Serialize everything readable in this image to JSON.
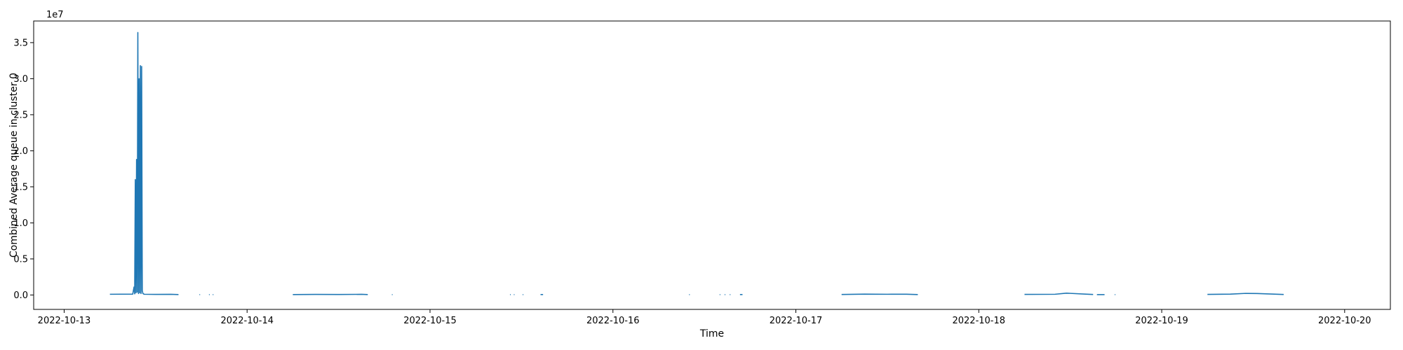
{
  "chart_data": {
    "type": "line",
    "title": "",
    "xlabel": "Time",
    "ylabel": "Combined Average queue in cluster 0",
    "y_offset_label": "1e7",
    "y_scale_factor": 10000000,
    "x_type": "date",
    "xlim": [
      "2022-10-12 20:00",
      "2022-10-20 06:00"
    ],
    "ylim": [
      -2000000,
      38000000
    ],
    "x_ticks": [
      "2022-10-13",
      "2022-10-14",
      "2022-10-15",
      "2022-10-16",
      "2022-10-17",
      "2022-10-18",
      "2022-10-19",
      "2022-10-20"
    ],
    "x_tick_labels": [
      "2022-10-13",
      "2022-10-14",
      "2022-10-15",
      "2022-10-16",
      "2022-10-17",
      "2022-10-18",
      "2022-10-19",
      "2022-10-20"
    ],
    "y_ticks": [
      0,
      5000000,
      10000000,
      15000000,
      20000000,
      25000000,
      30000000,
      35000000
    ],
    "y_tick_labels": [
      "0.0",
      "0.5",
      "1.0",
      "1.5",
      "2.0",
      "2.5",
      "3.0",
      "3.5"
    ],
    "grid": false,
    "legend": "none",
    "series_color": "#1f77b4",
    "series": [
      {
        "segments": [
          {
            "x": [
              "2022-10-13 06:00",
              "2022-10-13 09:00",
              "2022-10-13 09:10",
              "2022-10-13 09:15",
              "2022-10-13 09:20",
              "2022-10-13 09:25",
              "2022-10-13 09:30",
              "2022-10-13 09:35",
              "2022-10-13 09:40",
              "2022-10-13 09:45",
              "2022-10-13 09:50",
              "2022-10-13 09:55",
              "2022-10-13 10:00",
              "2022-10-13 10:05",
              "2022-10-13 10:10",
              "2022-10-13 10:15",
              "2022-10-13 10:20",
              "2022-10-13 10:30",
              "2022-10-13 12:00",
              "2022-10-13 14:00",
              "2022-10-13 15:00"
            ],
            "y": [
              100000,
              120000,
              1100000,
              150000,
              16000000,
              300000,
              18800000,
              400000,
              36400000,
              200000,
              30000000,
              300000,
              31800000,
              200000,
              31700000,
              600000,
              200000,
              100000,
              80000,
              90000,
              60000
            ]
          },
          {
            "x": [
              "2022-10-13 17:45",
              "2022-10-13 17:50"
            ],
            "y": [
              50000,
              50000
            ]
          },
          {
            "x": [
              "2022-10-13 19:00",
              "2022-10-13 19:05"
            ],
            "y": [
              50000,
              50000
            ]
          },
          {
            "x": [
              "2022-10-13 19:30",
              "2022-10-13 19:35"
            ],
            "y": [
              50000,
              50000
            ]
          },
          {
            "x": [
              "2022-10-14 06:00",
              "2022-10-14 09:00",
              "2022-10-14 12:00",
              "2022-10-14 15:00",
              "2022-10-14 15:50"
            ],
            "y": [
              60000,
              80000,
              70000,
              90000,
              60000
            ]
          },
          {
            "x": [
              "2022-10-14 19:00",
              "2022-10-14 19:05"
            ],
            "y": [
              50000,
              50000
            ]
          },
          {
            "x": [
              "2022-10-15 10:30",
              "2022-10-15 10:35"
            ],
            "y": [
              50000,
              50000
            ]
          },
          {
            "x": [
              "2022-10-15 11:00",
              "2022-10-15 11:05"
            ],
            "y": [
              50000,
              50000
            ]
          },
          {
            "x": [
              "2022-10-15 12:10",
              "2022-10-15 12:15"
            ],
            "y": [
              50000,
              50000
            ]
          },
          {
            "x": [
              "2022-10-15 14:30",
              "2022-10-15 14:50"
            ],
            "y": [
              60000,
              60000
            ]
          },
          {
            "x": [
              "2022-10-16 10:00",
              "2022-10-16 10:05"
            ],
            "y": [
              50000,
              50000
            ]
          },
          {
            "x": [
              "2022-10-16 14:00",
              "2022-10-16 14:05"
            ],
            "y": [
              50000,
              50000
            ]
          },
          {
            "x": [
              "2022-10-16 14:40",
              "2022-10-16 14:45"
            ],
            "y": [
              50000,
              50000
            ]
          },
          {
            "x": [
              "2022-10-16 15:20",
              "2022-10-16 15:25"
            ],
            "y": [
              50000,
              50000
            ]
          },
          {
            "x": [
              "2022-10-16 16:40",
              "2022-10-16 17:00"
            ],
            "y": [
              60000,
              60000
            ]
          },
          {
            "x": [
              "2022-10-17 06:00",
              "2022-10-17 09:00",
              "2022-10-17 12:00",
              "2022-10-17 14:30",
              "2022-10-17 16:00"
            ],
            "y": [
              70000,
              120000,
              100000,
              110000,
              60000
            ]
          },
          {
            "x": [
              "2022-10-18 06:00",
              "2022-10-18 10:00",
              "2022-10-18 11:30",
              "2022-10-18 14:00",
              "2022-10-18 15:00"
            ],
            "y": [
              80000,
              100000,
              250000,
              120000,
              70000
            ]
          },
          {
            "x": [
              "2022-10-18 15:30",
              "2022-10-18 16:30"
            ],
            "y": [
              50000,
              50000
            ]
          },
          {
            "x": [
              "2022-10-18 17:50",
              "2022-10-18 17:55"
            ],
            "y": [
              50000,
              50000
            ]
          },
          {
            "x": [
              "2022-10-19 06:00",
              "2022-10-19 09:00",
              "2022-10-19 11:00",
              "2022-10-19 12:30",
              "2022-10-19 16:00"
            ],
            "y": [
              80000,
              120000,
              220000,
              200000,
              70000
            ]
          }
        ]
      }
    ]
  }
}
